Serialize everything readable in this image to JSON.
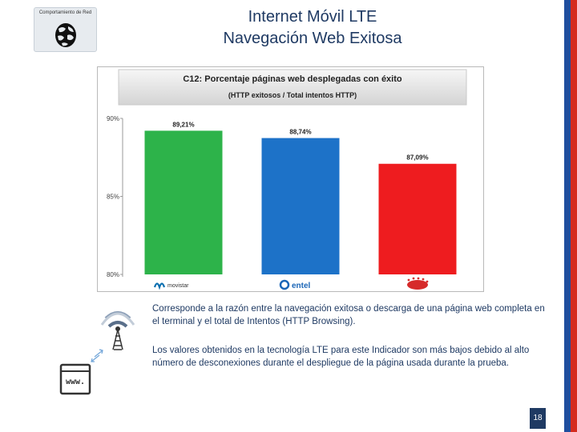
{
  "header": {
    "badge_label": "Comportamiento de Red",
    "title_line1": "Internet Móvil LTE",
    "title_line2": "Navegación Web Exitosa"
  },
  "chart_data": {
    "type": "bar",
    "title": "C12: Porcentaje páginas web desplegadas con éxito",
    "subtitle": "(HTTP exitosos / Total intentos HTTP)",
    "categories": [
      "movistar",
      "entel",
      "claro"
    ],
    "values": [
      89.21,
      88.74,
      87.09
    ],
    "value_labels": [
      "89,21%",
      "88,74%",
      "87,09%"
    ],
    "ylim": [
      80,
      90
    ],
    "yticks": [
      80,
      85,
      90
    ],
    "ytick_labels": [
      "80%",
      "85%",
      "90%"
    ],
    "xlabel": "",
    "ylabel": "",
    "grid": false,
    "legend": "none",
    "colors": [
      "#2db34a",
      "#1d72c8",
      "#ee1c1f"
    ],
    "category_colors": [
      "#0b6fb0",
      "#1b66b7",
      "#d62a2a"
    ]
  },
  "body": {
    "paragraph1": "Corresponde a la razón entre la navegación exitosa o descarga de una página web completa en el terminal y el total de Intentos (HTTP Browsing).",
    "paragraph2": "Los valores obtenidos en la tecnología LTE para este Indicador son más bajos debido al alto número de desconexiones durante el despliegue de la página usada durante la prueba."
  },
  "footer": {
    "page_number": "18"
  },
  "illustration": {
    "browser_text": "www."
  },
  "theme": {
    "title_color": "#1f3a63",
    "flag_blue": "#1f4e9e",
    "flag_red": "#d52b1e"
  }
}
